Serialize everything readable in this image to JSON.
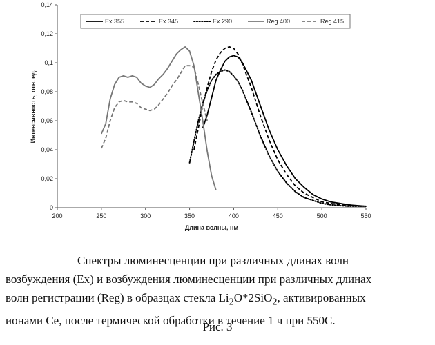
{
  "chart_data": {
    "type": "line",
    "title": "",
    "xlabel": "Длина волны, нм",
    "ylabel": "Интенсивность, отн. ед.",
    "xlim": [
      200,
      550
    ],
    "ylim": [
      0,
      0.14
    ],
    "x_ticks": [
      "200",
      "250",
      "300",
      "350",
      "400",
      "450",
      "500",
      "550"
    ],
    "y_ticks": [
      "0",
      "0,02",
      "0,04",
      "0,06",
      "0,08",
      "0,1",
      "0,12",
      "0,14"
    ],
    "grid": false,
    "legend_position": "top",
    "series": [
      {
        "name": "Ex 355",
        "style": "solid",
        "color": "#000000",
        "x": [
          365,
          370,
          375,
          380,
          385,
          390,
          395,
          400,
          405,
          410,
          420,
          430,
          440,
          450,
          460,
          470,
          480,
          490,
          500,
          510,
          520,
          530,
          540,
          550
        ],
        "y": [
          0.055,
          0.064,
          0.076,
          0.088,
          0.095,
          0.101,
          0.104,
          0.105,
          0.104,
          0.1,
          0.088,
          0.071,
          0.054,
          0.04,
          0.029,
          0.02,
          0.014,
          0.009,
          0.006,
          0.004,
          0.003,
          0.002,
          0.0015,
          0.001
        ]
      },
      {
        "name": "Ex 345",
        "style": "dashed",
        "color": "#000000",
        "x": [
          355,
          360,
          365,
          370,
          375,
          380,
          385,
          390,
          395,
          400,
          405,
          410,
          420,
          430,
          440,
          450,
          460,
          470,
          480,
          490,
          500,
          510,
          520,
          530,
          540,
          550
        ],
        "y": [
          0.04,
          0.055,
          0.071,
          0.083,
          0.094,
          0.102,
          0.107,
          0.11,
          0.111,
          0.11,
          0.106,
          0.099,
          0.083,
          0.064,
          0.047,
          0.033,
          0.023,
          0.015,
          0.01,
          0.007,
          0.004,
          0.003,
          0.002,
          0.0015,
          0.001,
          0.001
        ]
      },
      {
        "name": "Ex 290",
        "style": "dotted",
        "color": "#000000",
        "x": [
          350,
          355,
          360,
          365,
          370,
          375,
          380,
          385,
          390,
          395,
          400,
          405,
          410,
          420,
          430,
          440,
          450,
          460,
          470,
          480,
          490,
          500,
          510,
          520,
          530,
          540,
          550
        ],
        "y": [
          0.031,
          0.046,
          0.06,
          0.072,
          0.081,
          0.088,
          0.092,
          0.094,
          0.095,
          0.094,
          0.091,
          0.087,
          0.081,
          0.066,
          0.05,
          0.036,
          0.025,
          0.017,
          0.011,
          0.007,
          0.005,
          0.003,
          0.002,
          0.0015,
          0.001,
          0.001,
          0.001
        ]
      },
      {
        "name": "Reg 400",
        "style": "solid",
        "color": "#777777",
        "x": [
          250,
          255,
          260,
          265,
          270,
          275,
          280,
          285,
          290,
          295,
          300,
          305,
          310,
          315,
          320,
          325,
          330,
          335,
          340,
          345,
          350,
          355,
          360,
          365,
          370,
          375,
          380
        ],
        "y": [
          0.051,
          0.058,
          0.075,
          0.085,
          0.09,
          0.091,
          0.09,
          0.091,
          0.09,
          0.086,
          0.084,
          0.083,
          0.085,
          0.089,
          0.092,
          0.096,
          0.101,
          0.106,
          0.109,
          0.111,
          0.108,
          0.098,
          0.079,
          0.06,
          0.039,
          0.022,
          0.012
        ]
      },
      {
        "name": "Reg 415",
        "style": "dashed",
        "color": "#777777",
        "x": [
          250,
          255,
          260,
          265,
          270,
          275,
          280,
          285,
          290,
          295,
          300,
          305,
          310,
          315,
          320,
          325,
          330,
          335,
          340,
          345,
          350,
          355,
          360,
          365,
          370
        ],
        "y": [
          0.041,
          0.048,
          0.06,
          0.069,
          0.073,
          0.074,
          0.073,
          0.073,
          0.072,
          0.069,
          0.068,
          0.067,
          0.068,
          0.071,
          0.075,
          0.079,
          0.084,
          0.088,
          0.093,
          0.098,
          0.098,
          0.097,
          0.085,
          0.072,
          0.06
        ]
      }
    ]
  },
  "caption": {
    "line1": "Спектры люминесценции при различных длинах волн",
    "line2": "возбуждения (Ex)  и возбуждения люминесценции при различных длинах",
    "line3_a": "волн регистрации (Reg) в  образцах стекла Li",
    "line3_sub1": "2",
    "line3_b": "O*2SiO",
    "line3_sub2": "2",
    "line3_c": ", активированных",
    "line4": "ионами Ce, после термической обработки в течение 1 ч при 550С.",
    "figure_label": "Рис. 3"
  }
}
